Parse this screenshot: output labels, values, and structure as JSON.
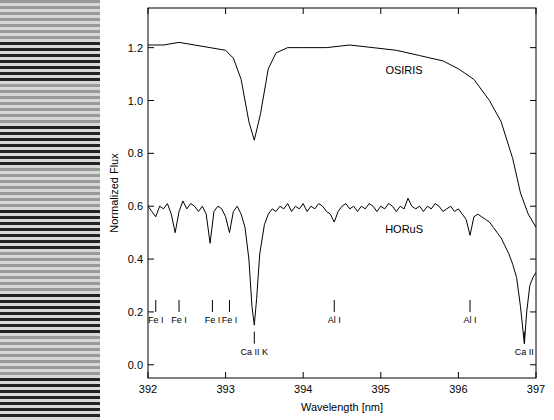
{
  "chart_data": {
    "type": "line",
    "xlabel": "Wavelength [nm]",
    "ylabel": "Normalized Flux",
    "xlim": [
      392,
      397
    ],
    "xticks": [
      392,
      393,
      394,
      395,
      396,
      397
    ],
    "ylim": [
      -0.05,
      1.35
    ],
    "yticks": [
      {
        "value": 0,
        "label": "0.0"
      },
      {
        "value": 0.2,
        "label": "0.2"
      },
      {
        "value": 0.4,
        "label": "0.4"
      },
      {
        "value": 0.6,
        "label": "0.6"
      },
      {
        "value": 0.8,
        "label": "0.8"
      },
      {
        "value": 1,
        "label": "1.0"
      },
      {
        "value": 1.2,
        "label": "1.2"
      }
    ],
    "grid": false,
    "series": [
      {
        "name": "OSIRIS",
        "color": "#000000",
        "label_x": 395.3,
        "label_y": 1.1,
        "x": [
          392.0,
          392.2,
          392.4,
          392.6,
          392.8,
          393.0,
          393.1,
          393.2,
          393.3,
          393.37,
          393.45,
          393.55,
          393.65,
          393.8,
          394.0,
          394.3,
          394.6,
          394.9,
          395.2,
          395.5,
          395.8,
          396.0,
          396.2,
          396.4,
          396.55,
          396.7,
          396.8,
          396.9,
          397.0
        ],
        "values": [
          1.21,
          1.21,
          1.22,
          1.21,
          1.2,
          1.19,
          1.16,
          1.08,
          0.92,
          0.85,
          0.95,
          1.12,
          1.18,
          1.2,
          1.2,
          1.2,
          1.21,
          1.2,
          1.19,
          1.17,
          1.15,
          1.12,
          1.08,
          1.0,
          0.92,
          0.78,
          0.65,
          0.57,
          0.52
        ]
      },
      {
        "name": "HORuS",
        "color": "#000000",
        "label_x": 395.3,
        "label_y": 0.5,
        "x": [
          392.0,
          392.05,
          392.1,
          392.15,
          392.2,
          392.25,
          392.3,
          392.35,
          392.4,
          392.45,
          392.5,
          392.55,
          392.6,
          392.65,
          392.7,
          392.75,
          392.8,
          392.85,
          392.9,
          392.95,
          393.0,
          393.05,
          393.1,
          393.15,
          393.2,
          393.25,
          393.3,
          393.34,
          393.37,
          393.4,
          393.44,
          393.5,
          393.55,
          393.6,
          393.65,
          393.7,
          393.75,
          393.8,
          393.85,
          393.9,
          393.95,
          394.0,
          394.05,
          394.1,
          394.15,
          394.2,
          394.25,
          394.3,
          394.35,
          394.4,
          394.45,
          394.5,
          394.55,
          394.6,
          394.65,
          394.7,
          394.75,
          394.8,
          394.85,
          394.9,
          394.95,
          395.0,
          395.05,
          395.1,
          395.15,
          395.2,
          395.25,
          395.3,
          395.35,
          395.4,
          395.45,
          395.5,
          395.55,
          395.6,
          395.65,
          395.7,
          395.75,
          395.8,
          395.85,
          395.9,
          395.95,
          396.0,
          396.05,
          396.1,
          396.15,
          396.2,
          396.25,
          396.3,
          396.35,
          396.4,
          396.45,
          396.5,
          396.55,
          396.6,
          396.65,
          396.7,
          396.75,
          396.8,
          396.85,
          396.88,
          396.92,
          396.96,
          397.0
        ],
        "values": [
          0.6,
          0.58,
          0.56,
          0.6,
          0.59,
          0.61,
          0.57,
          0.5,
          0.58,
          0.62,
          0.59,
          0.61,
          0.6,
          0.58,
          0.6,
          0.57,
          0.46,
          0.58,
          0.6,
          0.59,
          0.56,
          0.5,
          0.58,
          0.6,
          0.57,
          0.52,
          0.4,
          0.22,
          0.15,
          0.25,
          0.42,
          0.53,
          0.57,
          0.59,
          0.58,
          0.6,
          0.59,
          0.61,
          0.58,
          0.6,
          0.59,
          0.61,
          0.58,
          0.6,
          0.59,
          0.61,
          0.6,
          0.58,
          0.57,
          0.54,
          0.58,
          0.6,
          0.61,
          0.59,
          0.6,
          0.58,
          0.6,
          0.59,
          0.61,
          0.6,
          0.58,
          0.6,
          0.59,
          0.61,
          0.6,
          0.58,
          0.6,
          0.59,
          0.63,
          0.6,
          0.59,
          0.6,
          0.58,
          0.6,
          0.59,
          0.61,
          0.6,
          0.58,
          0.59,
          0.6,
          0.58,
          0.59,
          0.57,
          0.55,
          0.49,
          0.56,
          0.57,
          0.56,
          0.55,
          0.54,
          0.52,
          0.5,
          0.48,
          0.45,
          0.42,
          0.38,
          0.33,
          0.22,
          0.08,
          0.2,
          0.3,
          0.33,
          0.35
        ]
      }
    ],
    "annotations": [
      {
        "text": "Fe I",
        "x": 392.1,
        "y": 0.2
      },
      {
        "text": "Fe I",
        "x": 392.4,
        "y": 0.2
      },
      {
        "text": "Fe I",
        "x": 392.83,
        "y": 0.2
      },
      {
        "text": "Fe I",
        "x": 393.05,
        "y": 0.2
      },
      {
        "text": "Al I",
        "x": 394.4,
        "y": 0.2
      },
      {
        "text": "Al I",
        "x": 396.15,
        "y": 0.2
      },
      {
        "text": "Ca II K",
        "x": 393.37,
        "y": 0.08
      },
      {
        "text": "Ca II",
        "x": 396.85,
        "y": 0.08
      }
    ]
  }
}
